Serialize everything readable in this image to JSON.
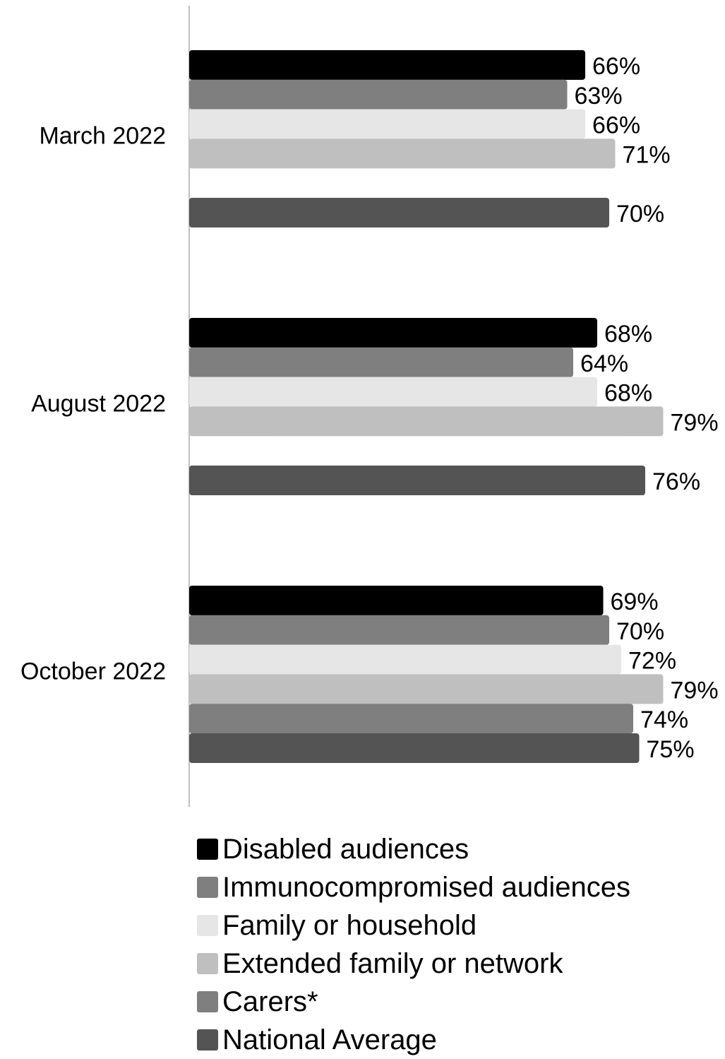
{
  "chart_data": {
    "type": "bar",
    "orientation": "horizontal",
    "categories": [
      "March 2022",
      "August 2022",
      "October 2022"
    ],
    "value_suffix": "%",
    "xlim": [
      0,
      100
    ],
    "grid": false,
    "legend_position": "bottom",
    "series": [
      {
        "name": "Disabled audiences",
        "color": "#000000",
        "values": [
          66,
          68,
          69
        ],
        "labels": [
          "66%",
          "68%",
          "69%"
        ]
      },
      {
        "name": "Immunocompromised audiences",
        "color": "#7f7f7f",
        "values": [
          63,
          64,
          70
        ],
        "labels": [
          "63%",
          "64%",
          "70%"
        ]
      },
      {
        "name": "Family or household",
        "color": "#e6e6e6",
        "values": [
          66,
          68,
          72
        ],
        "labels": [
          "66%",
          "68%",
          "72%"
        ]
      },
      {
        "name": "Extended family or network",
        "color": "#bfbfbf",
        "values": [
          71,
          79,
          79
        ],
        "labels": [
          "71%",
          "79%",
          "79%"
        ]
      },
      {
        "name": "Carers*",
        "color": "#7f7f7f",
        "values": [
          null,
          null,
          74
        ],
        "labels": [
          "",
          "",
          "74%"
        ]
      },
      {
        "name": "National Average",
        "color": "#545454",
        "values": [
          70,
          76,
          75
        ],
        "labels": [
          "70%",
          "76%",
          "75%"
        ]
      }
    ]
  }
}
